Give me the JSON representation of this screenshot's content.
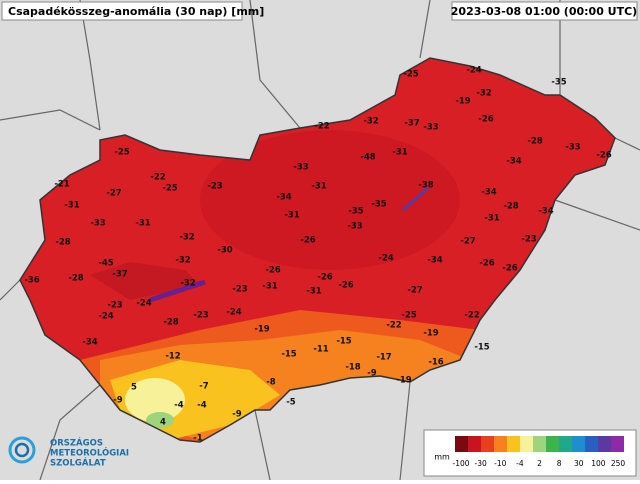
{
  "header": {
    "title": "Csapadékösszeg-anomália (30 nap) [mm]",
    "timestamp": "2023-03-08 01:00 (00:00 UTC)"
  },
  "stations": [
    -25,
    -24,
    -35,
    -32,
    -19,
    -26,
    -22,
    -32,
    -37,
    -33,
    -28,
    -33,
    -26,
    -25,
    -48,
    -31,
    -34,
    -33,
    -21,
    -22,
    -25,
    -23,
    -31,
    -38,
    -27,
    -34,
    -34,
    -31,
    -28,
    -34,
    -35,
    -35,
    -31,
    -31,
    -33,
    -31,
    -33,
    -32,
    -26,
    -27,
    -23,
    -28,
    -30,
    -32,
    -45,
    -26,
    -24,
    -34,
    -26,
    -26,
    -36,
    -28,
    -37,
    -32,
    -23,
    -31,
    -26,
    -26,
    -31,
    -27,
    -23,
    -24,
    -24,
    -28,
    -23,
    -24,
    -19,
    -25,
    -22,
    -22,
    -19,
    -34,
    -15,
    -11,
    -15,
    -12,
    -17,
    -15,
    -18,
    -9,
    -16,
    -19,
    -7,
    -8,
    5,
    -9,
    -4,
    -4,
    -5,
    -9,
    4,
    -1
  ],
  "legend": {
    "unit": "mm",
    "labels": [
      -100,
      -30,
      -10,
      -4,
      2,
      8,
      30,
      100,
      250
    ]
  },
  "logo": {
    "lines": [
      "ORSZÁGOS",
      "METEOROLÓGIAI",
      "SZOLGÁLAT"
    ]
  }
}
